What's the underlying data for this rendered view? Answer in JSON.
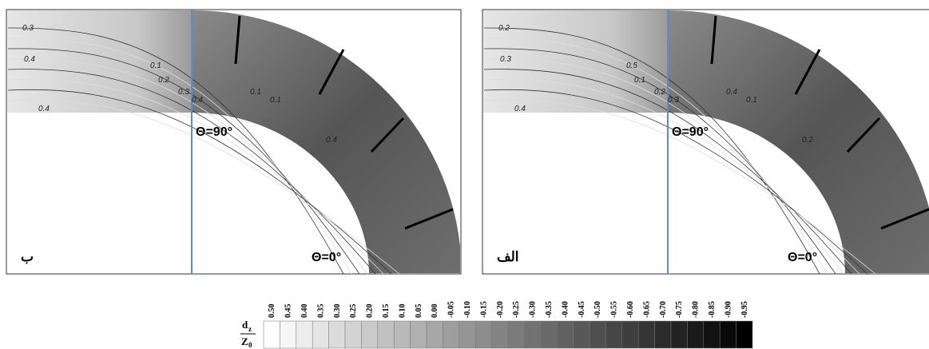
{
  "panels": [
    {
      "label": "ب",
      "theta_top": "Θ=90°",
      "theta_bottom": "Θ=0°",
      "contour_labels": [
        "0.3",
        "0.4",
        "0.4",
        "0.1",
        "0.2",
        "0.3",
        "0.4",
        "0.1",
        "0.1",
        "0.4"
      ]
    },
    {
      "label": "الف",
      "theta_top": "Θ=90°",
      "theta_bottom": "Θ=0°",
      "contour_labels": [
        "0.2",
        "0.3",
        "0.4",
        "0.5",
        "0.1",
        "0.2",
        "0.3",
        "0.4",
        "0.1",
        "0.2"
      ]
    }
  ],
  "colorbar": {
    "label": {
      "numerator": "d",
      "numerator_sub": "z",
      "denominator": "Z",
      "denominator_sub": "0"
    },
    "ticks": [
      {
        "value": 0.5,
        "label": "0.50"
      },
      {
        "value": 0.45,
        "label": "0.45"
      },
      {
        "value": 0.4,
        "label": "0.40"
      },
      {
        "value": 0.35,
        "label": "0.35"
      },
      {
        "value": 0.3,
        "label": "0.30"
      },
      {
        "value": 0.25,
        "label": "0.25"
      },
      {
        "value": 0.2,
        "label": "0.20"
      },
      {
        "value": 0.15,
        "label": "0.15"
      },
      {
        "value": 0.1,
        "label": "0.10"
      },
      {
        "value": 0.05,
        "label": "0.05"
      },
      {
        "value": 0,
        "label": "0.00"
      },
      {
        "value": -0.05,
        "label": "-0.05"
      },
      {
        "value": -0.1,
        "label": "-0.10"
      },
      {
        "value": -0.15,
        "label": "-0.15"
      },
      {
        "value": -0.2,
        "label": "-0.20"
      },
      {
        "value": -0.25,
        "label": "-0.25"
      },
      {
        "value": -0.3,
        "label": "-0.30"
      },
      {
        "value": -0.35,
        "label": "-0.35"
      },
      {
        "value": -0.4,
        "label": "-0.40"
      },
      {
        "value": -0.45,
        "label": "-0.45"
      },
      {
        "value": -0.5,
        "label": "-0.50"
      },
      {
        "value": -0.55,
        "label": "-0.55"
      },
      {
        "value": -0.6,
        "label": "-0.60"
      },
      {
        "value": -0.65,
        "label": "-0.65"
      },
      {
        "value": -0.7,
        "label": "-0.70"
      },
      {
        "value": -0.75,
        "label": "-0.75"
      },
      {
        "value": -0.8,
        "label": "-0.80"
      },
      {
        "value": -0.85,
        "label": "-0.85"
      },
      {
        "value": -0.9,
        "label": "-0.90"
      },
      {
        "value": -0.95,
        "label": "-0.95"
      }
    ]
  }
}
